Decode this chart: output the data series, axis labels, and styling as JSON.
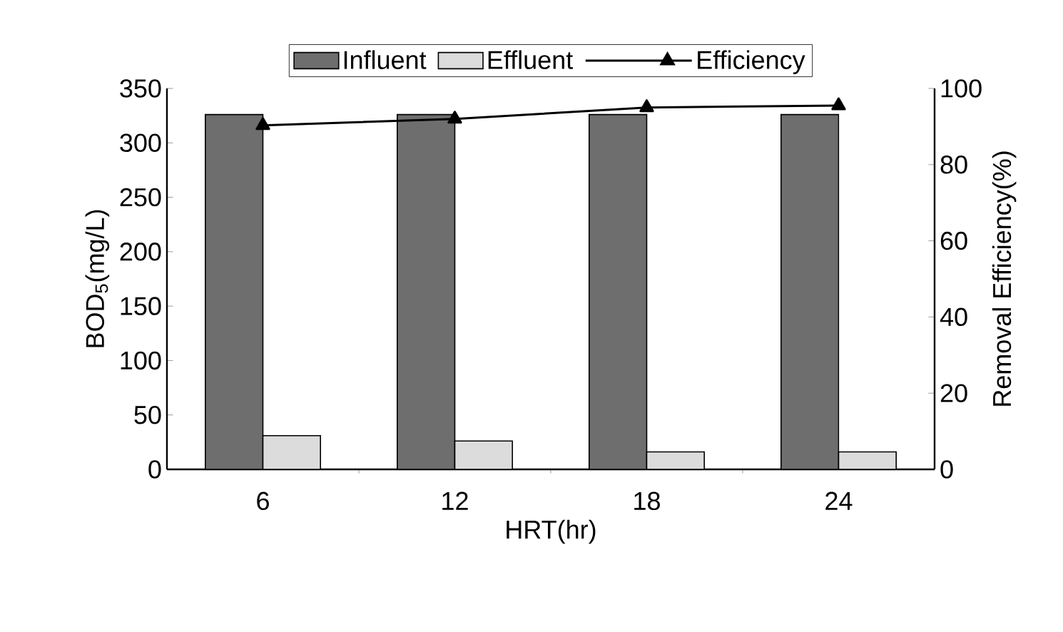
{
  "chart_data": {
    "type": "bar",
    "xlabel": "HRT(hr)",
    "ylabel": "BOD$_{5}$(mg/L)",
    "y2label": "Removal Efficiency(%)",
    "categories": [
      "6",
      "12",
      "18",
      "24"
    ],
    "series": [
      {
        "name": "Influent",
        "color": "#6e6e6e",
        "values": [
          326,
          326,
          326,
          326
        ]
      },
      {
        "name": "Effluent",
        "color": "#dcdcdc",
        "values": [
          31,
          26,
          16,
          16
        ]
      },
      {
        "name": "Efficiency",
        "type": "line",
        "axis": "y2",
        "color": "#000000",
        "marker": "triangle",
        "values": [
          90.3,
          92,
          95,
          95.5
        ]
      }
    ],
    "ylim": [
      0,
      350
    ],
    "yticks": [
      0,
      50,
      100,
      150,
      200,
      250,
      300,
      350
    ],
    "y2lim": [
      0,
      100
    ],
    "y2ticks": [
      0,
      20,
      40,
      60,
      80,
      100
    ],
    "legend": "top",
    "grid": false
  }
}
